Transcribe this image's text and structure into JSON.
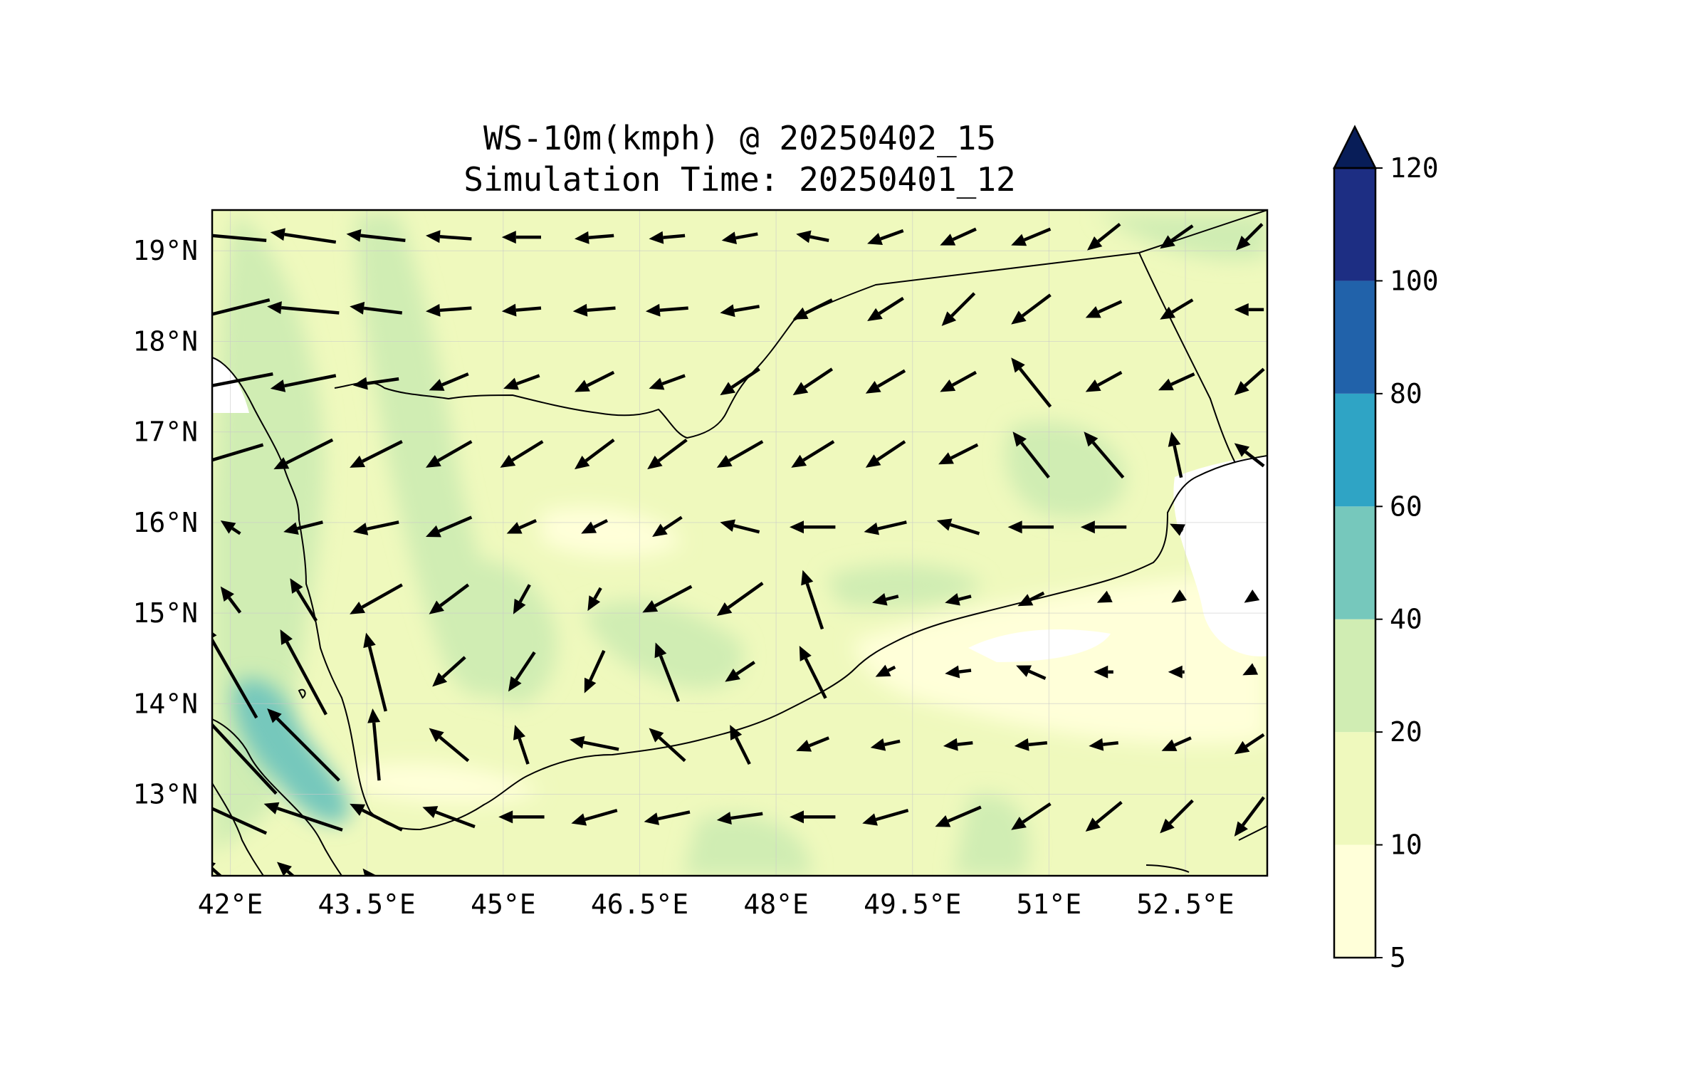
{
  "title_line1": "WS-10m(kmph) @ 20250402_15",
  "title_line2": "Simulation Time: 20250401_12",
  "lon_ticks": [
    {
      "value": 42.0,
      "label": "42°E"
    },
    {
      "value": 43.5,
      "label": "43.5°E"
    },
    {
      "value": 45.0,
      "label": "45°E"
    },
    {
      "value": 46.5,
      "label": "46.5°E"
    },
    {
      "value": 48.0,
      "label": "48°E"
    },
    {
      "value": 49.5,
      "label": "49.5°E"
    },
    {
      "value": 51.0,
      "label": "51°E"
    },
    {
      "value": 52.5,
      "label": "52.5°E"
    }
  ],
  "lat_ticks": [
    {
      "value": 19,
      "label": "19°N"
    },
    {
      "value": 18,
      "label": "18°N"
    },
    {
      "value": 17,
      "label": "17°N"
    },
    {
      "value": 16,
      "label": "16°N"
    },
    {
      "value": 15,
      "label": "15°N"
    },
    {
      "value": 14,
      "label": "14°N"
    },
    {
      "value": 13,
      "label": "13°N"
    }
  ],
  "map_extent": {
    "lon": [
      41.8,
      53.4
    ],
    "lat": [
      12.1,
      19.45
    ]
  },
  "colorbar": {
    "levels": [
      {
        "label": "5",
        "color": "#ffffd9"
      },
      {
        "label": "10",
        "color": "#eff9bd"
      },
      {
        "label": "20",
        "color": "#d0edb3"
      },
      {
        "label": "40",
        "color": "#76c8bc"
      },
      {
        "label": "60",
        "color": "#2fa4c5"
      },
      {
        "label": "80",
        "color": "#2162aa"
      },
      {
        "label": "100",
        "color": "#1d2e83"
      },
      {
        "label": "120",
        "color": "#081d58"
      }
    ],
    "extend": "max"
  },
  "wind_grid": {
    "lons": [
      42.0,
      42.8,
      43.6,
      44.4,
      45.2,
      46.0,
      46.8,
      47.6,
      48.4,
      49.2,
      50.0,
      50.8,
      51.6,
      52.4,
      53.2
    ],
    "lats": [
      19.15,
      18.35,
      17.55,
      16.75,
      15.95,
      15.15,
      14.35,
      13.55,
      12.75,
      12.0
    ],
    "u_v_kmph": [
      [
        [
          -22,
          2
        ],
        [
          -20,
          3
        ],
        [
          -18,
          2
        ],
        [
          -14,
          1
        ],
        [
          -12,
          0
        ],
        [
          -12,
          -1
        ],
        [
          -11,
          -1
        ],
        [
          -11,
          -2
        ],
        [
          -10,
          2
        ],
        [
          -11,
          -4
        ],
        [
          -11,
          -5
        ],
        [
          -12,
          -5
        ],
        [
          -10,
          -8
        ],
        [
          -10,
          -7
        ],
        [
          -8,
          -8
        ]
      ],
      [
        [
          -24,
          -6
        ],
        [
          -22,
          2
        ],
        [
          -16,
          2
        ],
        [
          -14,
          -1
        ],
        [
          -12,
          -1
        ],
        [
          -13,
          -1
        ],
        [
          -13,
          -1
        ],
        [
          -12,
          -2
        ],
        [
          -12,
          -6
        ],
        [
          -11,
          -7
        ],
        [
          -10,
          -10
        ],
        [
          -12,
          -9
        ],
        [
          -11,
          -5
        ],
        [
          -10,
          -6
        ],
        [
          -9,
          0
        ]
      ],
      [
        [
          -26,
          -5
        ],
        [
          -20,
          -4
        ],
        [
          -14,
          -2
        ],
        [
          -12,
          -5
        ],
        [
          -11,
          -4
        ],
        [
          -12,
          -6
        ],
        [
          -11,
          -4
        ],
        [
          -12,
          -8
        ],
        [
          -12,
          -8
        ],
        [
          -12,
          -7
        ],
        [
          -11,
          -6
        ],
        [
          -12,
          15
        ],
        [
          -11,
          -6
        ],
        [
          -11,
          -5
        ],
        [
          -9,
          -8
        ]
      ],
      [
        [
          -20,
          -6
        ],
        [
          -18,
          -9
        ],
        [
          -16,
          -8
        ],
        [
          -14,
          -8
        ],
        [
          -13,
          -8
        ],
        [
          -12,
          -9
        ],
        [
          -12,
          -9
        ],
        [
          -14,
          -8
        ],
        [
          -13,
          -8
        ],
        [
          -12,
          -8
        ],
        [
          -12,
          -6
        ],
        [
          -11,
          14
        ],
        [
          -12,
          14
        ],
        [
          -3,
          14
        ],
        [
          -9,
          7
        ]
      ],
      [
        [
          -6,
          4
        ],
        [
          -12,
          -3
        ],
        [
          -14,
          -3
        ],
        [
          -14,
          -6
        ],
        [
          -9,
          -4
        ],
        [
          -8,
          -4
        ],
        [
          -9,
          -6
        ],
        [
          -12,
          3
        ],
        [
          -14,
          0
        ],
        [
          -13,
          -3
        ],
        [
          -13,
          4
        ],
        [
          -14,
          0
        ],
        [
          -14,
          0
        ],
        [
          -4,
          2
        ],
        [
          0,
          0
        ]
      ],
      [
        [
          -6,
          8
        ],
        [
          -8,
          13
        ],
        [
          -16,
          -9
        ],
        [
          -12,
          -9
        ],
        [
          -5,
          -9
        ],
        [
          -4,
          -7
        ],
        [
          -15,
          -8
        ],
        [
          -14,
          -10
        ],
        [
          -6,
          18
        ],
        [
          -8,
          -2
        ],
        [
          -8,
          -2
        ],
        [
          -8,
          -4
        ],
        [
          -4,
          -2
        ],
        [
          -3,
          -2
        ],
        [
          -3,
          -2
        ]
      ],
      [
        [
          -16,
          28
        ],
        [
          -14,
          26
        ],
        [
          -6,
          24
        ],
        [
          -10,
          -9
        ],
        [
          -8,
          -12
        ],
        [
          -6,
          -13
        ],
        [
          -7,
          18
        ],
        [
          -9,
          -6
        ],
        [
          -8,
          16
        ],
        [
          -6,
          -3
        ],
        [
          -8,
          -1
        ],
        [
          -9,
          4
        ],
        [
          -6,
          0
        ],
        [
          -5,
          0
        ],
        [
          -4,
          -2
        ]
      ],
      [
        [
          -28,
          30
        ],
        [
          -22,
          22
        ],
        [
          -2,
          22
        ],
        [
          -12,
          10
        ],
        [
          -4,
          12
        ],
        [
          -15,
          3
        ],
        [
          -11,
          10
        ],
        [
          -6,
          12
        ],
        [
          -10,
          -4
        ],
        [
          -9,
          -2
        ],
        [
          -9,
          -1
        ],
        [
          -10,
          -1
        ],
        [
          -9,
          -1
        ],
        [
          -9,
          -4
        ],
        [
          -9,
          -6
        ]
      ],
      [
        [
          -22,
          10
        ],
        [
          -24,
          8
        ],
        [
          -16,
          8
        ],
        [
          -16,
          6
        ],
        [
          -14,
          0
        ],
        [
          -14,
          -4
        ],
        [
          -14,
          -3
        ],
        [
          -14,
          -2
        ],
        [
          -14,
          0
        ],
        [
          -14,
          -4
        ],
        [
          -14,
          -6
        ],
        [
          -12,
          -8
        ],
        [
          -11,
          -9
        ],
        [
          -10,
          -10
        ],
        [
          -9,
          -12
        ]
      ],
      [
        [
          -18,
          16
        ],
        [
          -16,
          14
        ],
        [
          -8,
          10
        ],
        [
          -12,
          -1
        ],
        [
          -14,
          -1
        ],
        [
          -14,
          -1
        ],
        [
          -14,
          -1
        ],
        [
          -14,
          -1
        ],
        [
          -14,
          -1
        ],
        [
          -14,
          -1
        ],
        [
          -14,
          -1
        ],
        [
          -14,
          -1
        ],
        [
          -14,
          -1
        ],
        [
          -14,
          -1
        ],
        [
          -14,
          -1
        ]
      ]
    ]
  }
}
